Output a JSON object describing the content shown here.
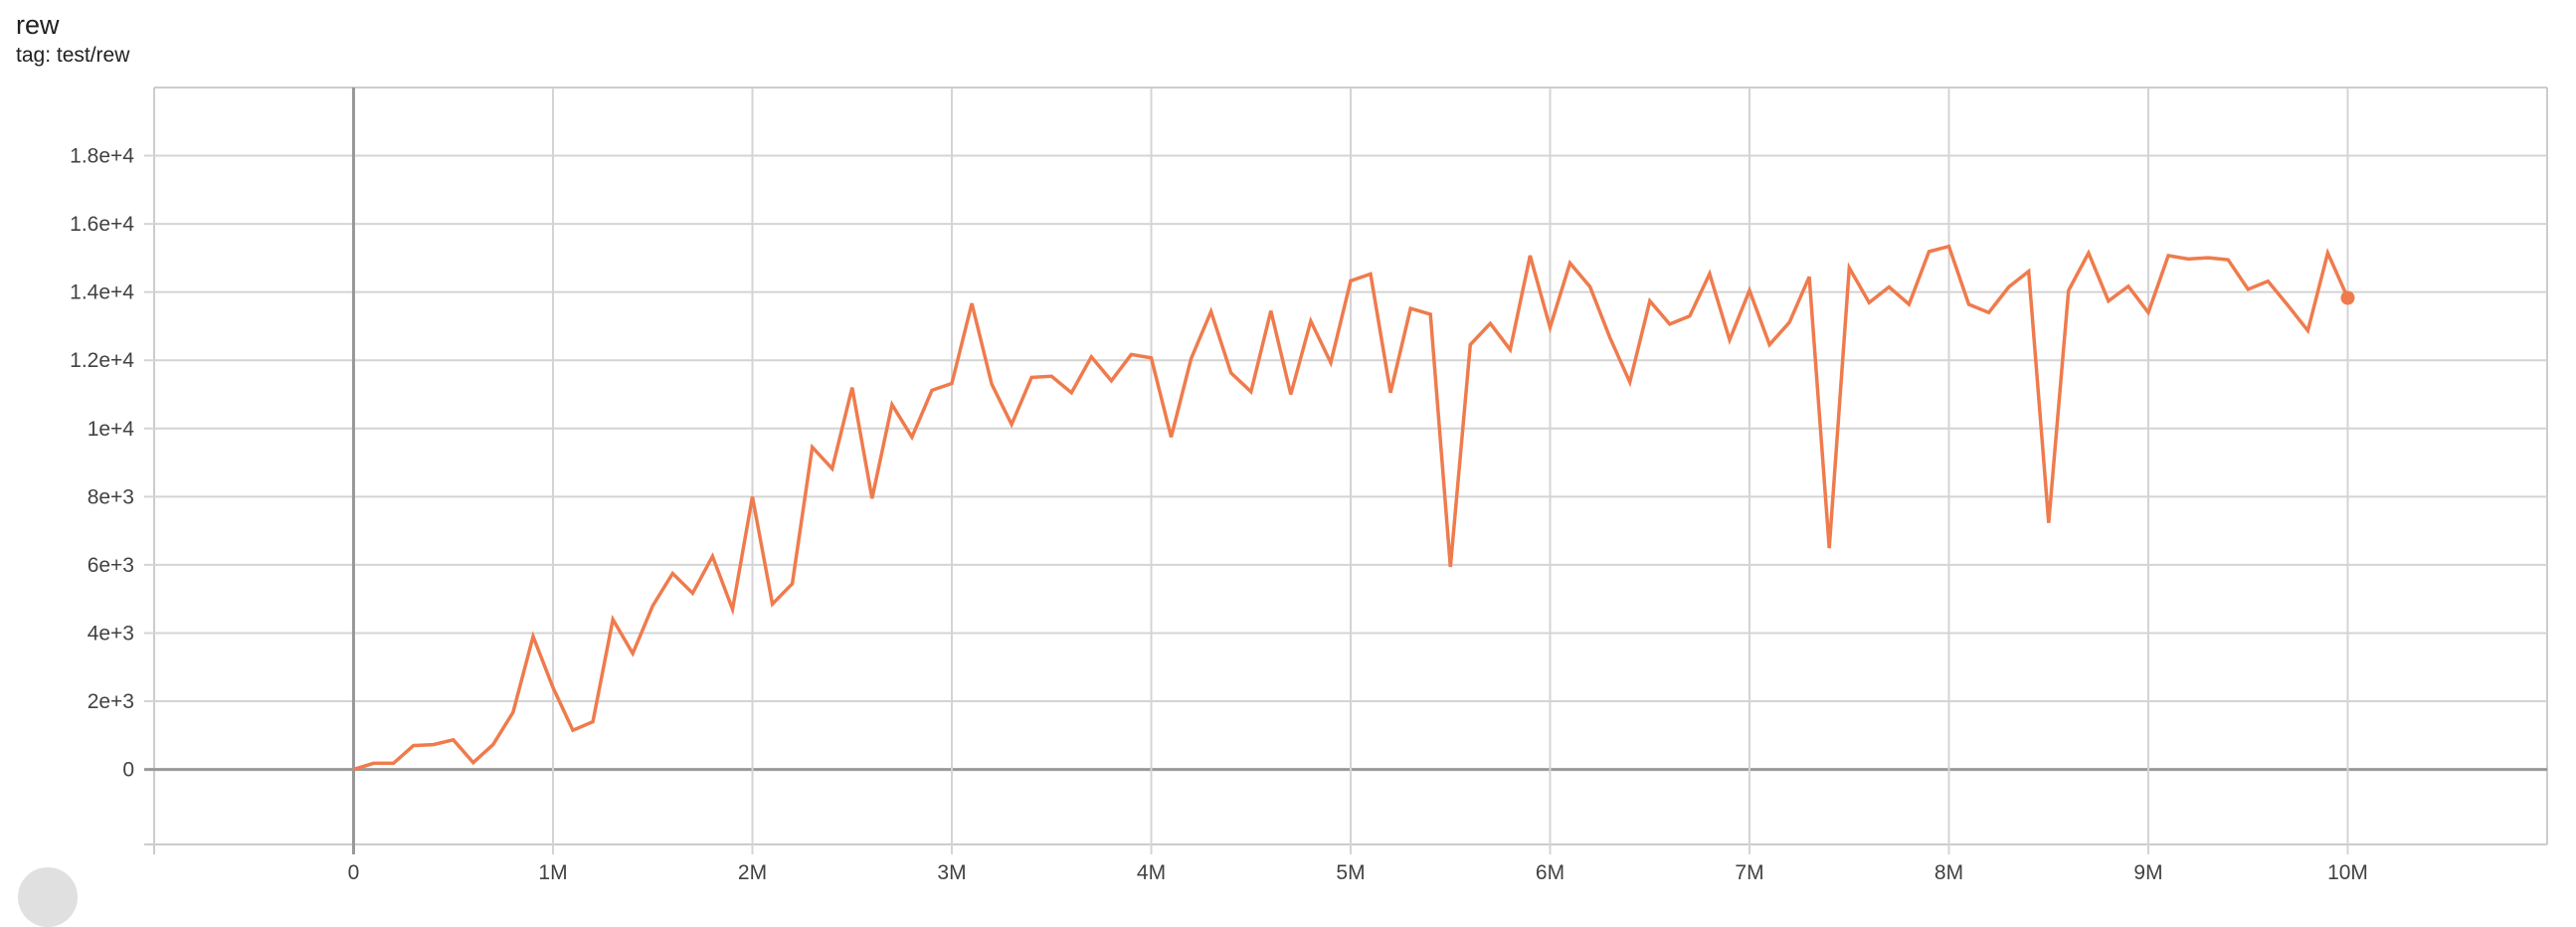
{
  "card": {
    "title": "rew",
    "tag": "tag: test/rew"
  },
  "chart_data": {
    "type": "line",
    "title": "rew",
    "subtitle": "tag: test/rew",
    "xlabel": "",
    "ylabel": "",
    "xlim": [
      -1000000,
      11000000
    ],
    "ylim": [
      -2200,
      20000
    ],
    "grid": true,
    "color": "#ef7b4d",
    "x_ticks": [
      {
        "value": 0,
        "label": "0"
      },
      {
        "value": 1000000,
        "label": "1M"
      },
      {
        "value": 2000000,
        "label": "2M"
      },
      {
        "value": 3000000,
        "label": "3M"
      },
      {
        "value": 4000000,
        "label": "4M"
      },
      {
        "value": 5000000,
        "label": "5M"
      },
      {
        "value": 6000000,
        "label": "6M"
      },
      {
        "value": 7000000,
        "label": "7M"
      },
      {
        "value": 8000000,
        "label": "8M"
      },
      {
        "value": 9000000,
        "label": "9M"
      },
      {
        "value": 10000000,
        "label": "10M"
      }
    ],
    "y_ticks": [
      {
        "value": 0,
        "label": "0"
      },
      {
        "value": 2000,
        "label": "2e+3"
      },
      {
        "value": 4000,
        "label": "4e+3"
      },
      {
        "value": 6000,
        "label": "6e+3"
      },
      {
        "value": 8000,
        "label": "8e+3"
      },
      {
        "value": 10000,
        "label": "1e+4"
      },
      {
        "value": 12000,
        "label": "1.2e+4"
      },
      {
        "value": 14000,
        "label": "1.4e+4"
      },
      {
        "value": 16000,
        "label": "1.6e+4"
      },
      {
        "value": 18000,
        "label": "1.8e+4"
      }
    ],
    "series": [
      {
        "x": [
          0,
          100000,
          200000,
          300000,
          400000,
          500000,
          600000,
          700000,
          800000,
          900000,
          1000000,
          1100000,
          1200000,
          1300000,
          1400000,
          1500000,
          1600000,
          1700000,
          1800000,
          1900000,
          2000000,
          2100000,
          2200000,
          2300000,
          2400000,
          2500000,
          2600000,
          2700000,
          2800000,
          2900000,
          3000000,
          3100000,
          3200000,
          3300000,
          3400000,
          3500000,
          3600000,
          3700000,
          3800000,
          3900000,
          4000000,
          4100000,
          4200000,
          4300000,
          4400000,
          4500000,
          4600000,
          4700000,
          4800000,
          4900000,
          5000000,
          5100000,
          5200000,
          5300000,
          5400000,
          5500000,
          5600000,
          5700000,
          5800000,
          5900000,
          6000000,
          6100000,
          6200000,
          6300000,
          6400000,
          6500000,
          6600000,
          6700000,
          6800000,
          6900000,
          7000000,
          7100000,
          7200000,
          7300000,
          7400000,
          7500000,
          7600000,
          7700000,
          7800000,
          7900000,
          8000000,
          8100000,
          8200000,
          8300000,
          8400000,
          8500000,
          8600000,
          8700000,
          8800000,
          8900000,
          9000000,
          9100000,
          9200000,
          9300000,
          9400000,
          9500000,
          9600000,
          9700000,
          9800000,
          9900000,
          10000000
        ],
        "y": [
          0,
          180,
          180,
          700,
          730,
          870,
          200,
          730,
          1680,
          3900,
          2400,
          1150,
          1400,
          4400,
          3400,
          4800,
          5750,
          5170,
          6250,
          4700,
          8000,
          4850,
          5450,
          9450,
          8820,
          11200,
          7950,
          10700,
          9750,
          11120,
          11320,
          13670,
          11300,
          10120,
          11500,
          11530,
          11050,
          12100,
          11400,
          12170,
          12070,
          9750,
          12050,
          13430,
          11630,
          11080,
          13450,
          11000,
          13150,
          11930,
          14330,
          14530,
          11050,
          13520,
          13350,
          5940,
          12460,
          13080,
          12310,
          15070,
          12960,
          14850,
          14160,
          12670,
          11360,
          13740,
          13060,
          13300,
          14540,
          12600,
          14050,
          12460,
          13110,
          14450,
          6490,
          14710,
          13690,
          14150,
          13640,
          15190,
          15340,
          13640,
          13400,
          14150,
          14610,
          7230,
          14050,
          15150,
          13740,
          14170,
          13400,
          15070,
          14970,
          15010,
          14950,
          14080,
          14320,
          13610,
          12870,
          15150,
          13830
        ]
      }
    ]
  }
}
